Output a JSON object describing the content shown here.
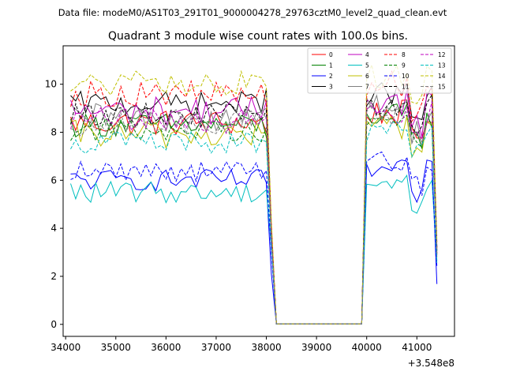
{
  "figure": {
    "suptitle": "Data file: modeM0/AS1T03_291T01_9000004278_29763cztM0_level2_quad_clean.evt"
  },
  "chart_data": {
    "type": "line",
    "title": "Quadrant 3 module wise count rates with 100.0s bins.",
    "xlabel": "",
    "ylabel": "",
    "offset_label": "+3.548e8",
    "xlim": [
      33950,
      41750
    ],
    "ylim": [
      -0.5,
      11.6
    ],
    "xticks": [
      34000,
      35000,
      36000,
      37000,
      38000,
      39000,
      40000,
      41000
    ],
    "yticks": [
      0,
      2,
      4,
      6,
      8,
      10
    ],
    "grid": false,
    "legend_position": "top-right",
    "legend_columns": 4,
    "x_start": 34100,
    "x_step": 100,
    "x_end": 41400,
    "gap_start": 38100,
    "gap_end": 39900,
    "series": [
      {
        "name": "0",
        "color": "#ff0000",
        "dash": "solid",
        "level": 8.4,
        "spread": 0.55,
        "drop_pre": 8.0,
        "drop_post": 4.0
      },
      {
        "name": "1",
        "color": "#008000",
        "dash": "solid",
        "level": 8.3,
        "spread": 0.5,
        "drop_pre": 7.8,
        "drop_post": 3.8
      },
      {
        "name": "2",
        "color": "#0000ff",
        "dash": "solid",
        "level": 6.0,
        "spread": 0.45,
        "drop_pre": 5.9,
        "drop_post": 2.1
      },
      {
        "name": "3",
        "color": "#000000",
        "dash": "solid",
        "level": 9.2,
        "spread": 0.5,
        "drop_pre": 9.8,
        "drop_post": 4.0
      },
      {
        "name": "4",
        "color": "#bf00bf",
        "dash": "solid",
        "level": 8.9,
        "spread": 0.6,
        "drop_pre": 9.3,
        "drop_post": 3.9
      },
      {
        "name": "5",
        "color": "#00bfbf",
        "dash": "solid",
        "level": 5.5,
        "spread": 0.45,
        "drop_pre": 5.6,
        "drop_post": 3.2
      },
      {
        "name": "6",
        "color": "#bfbf00",
        "dash": "solid",
        "level": 7.9,
        "spread": 0.6,
        "drop_pre": 8.0,
        "drop_post": 3.6
      },
      {
        "name": "7",
        "color": "#808080",
        "dash": "solid",
        "level": 8.6,
        "spread": 0.6,
        "drop_pre": 9.0,
        "drop_post": 3.5
      },
      {
        "name": "8",
        "color": "#ff0000",
        "dash": "dashed",
        "level": 9.6,
        "spread": 0.55,
        "drop_pre": 9.2,
        "drop_post": 4.2
      },
      {
        "name": "9",
        "color": "#008000",
        "dash": "dashed",
        "level": 8.1,
        "spread": 0.5,
        "drop_pre": 8.2,
        "drop_post": 3.8
      },
      {
        "name": "10",
        "color": "#0000ff",
        "dash": "dashed",
        "level": 6.4,
        "spread": 0.45,
        "drop_pre": 6.4,
        "drop_post": 3.0
      },
      {
        "name": "11",
        "color": "#000000",
        "dash": "dashed",
        "level": 8.7,
        "spread": 0.5,
        "drop_pre": 8.9,
        "drop_post": 3.7
      },
      {
        "name": "12",
        "color": "#bf00bf",
        "dash": "dashed",
        "level": 8.5,
        "spread": 0.55,
        "drop_pre": 8.6,
        "drop_post": 3.6
      },
      {
        "name": "13",
        "color": "#00bfbf",
        "dash": "dashed",
        "level": 7.6,
        "spread": 0.5,
        "drop_pre": 7.6,
        "drop_post": 3.3
      },
      {
        "name": "14",
        "color": "#bfbf00",
        "dash": "dashed",
        "level": 10.0,
        "spread": 0.55,
        "drop_pre": 9.9,
        "drop_post": 4.3
      },
      {
        "name": "15",
        "color": "#808080",
        "dash": "dashed",
        "level": 8.4,
        "spread": 0.55,
        "drop_pre": 8.6,
        "drop_post": 3.7
      }
    ]
  }
}
